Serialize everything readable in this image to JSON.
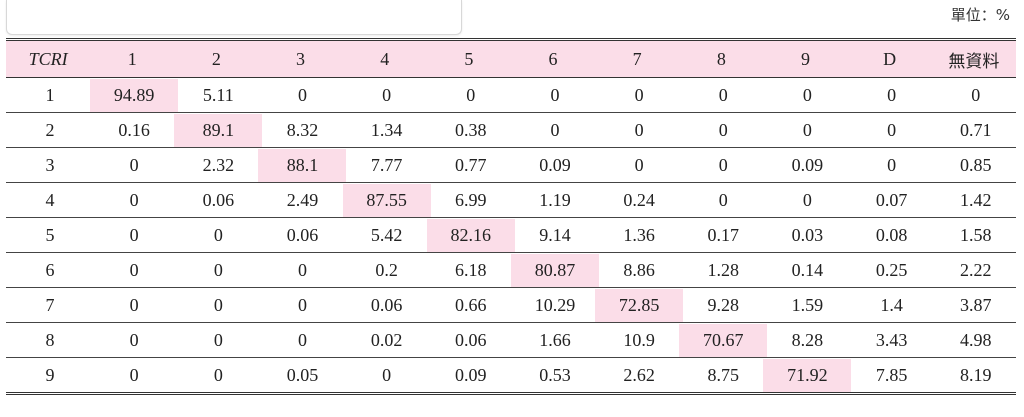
{
  "unit_label": "單位：%",
  "table": {
    "headers": [
      "TCRI",
      "1",
      "2",
      "3",
      "4",
      "5",
      "6",
      "7",
      "8",
      "9",
      "D",
      "無資料"
    ],
    "rows": [
      [
        "1",
        "94.89",
        "5.11",
        "0",
        "0",
        "0",
        "0",
        "0",
        "0",
        "0",
        "0",
        "0"
      ],
      [
        "2",
        "0.16",
        "89.1",
        "8.32",
        "1.34",
        "0.38",
        "0",
        "0",
        "0",
        "0",
        "0",
        "0.71"
      ],
      [
        "3",
        "0",
        "2.32",
        "88.1",
        "7.77",
        "0.77",
        "0.09",
        "0",
        "0",
        "0.09",
        "0",
        "0.85"
      ],
      [
        "4",
        "0",
        "0.06",
        "2.49",
        "87.55",
        "6.99",
        "1.19",
        "0.24",
        "0",
        "0",
        "0.07",
        "1.42"
      ],
      [
        "5",
        "0",
        "0",
        "0.06",
        "5.42",
        "82.16",
        "9.14",
        "1.36",
        "0.17",
        "0.03",
        "0.08",
        "1.58"
      ],
      [
        "6",
        "0",
        "0",
        "0",
        "0.2",
        "6.18",
        "80.87",
        "8.86",
        "1.28",
        "0.14",
        "0.25",
        "2.22"
      ],
      [
        "7",
        "0",
        "0",
        "0",
        "0.06",
        "0.66",
        "10.29",
        "72.85",
        "9.28",
        "1.59",
        "1.4",
        "3.87"
      ],
      [
        "8",
        "0",
        "0",
        "0",
        "0.02",
        "0.06",
        "1.66",
        "10.9",
        "70.67",
        "8.28",
        "3.43",
        "4.98"
      ],
      [
        "9",
        "0",
        "0",
        "0.05",
        "0",
        "0.09",
        "0.53",
        "2.62",
        "8.75",
        "71.92",
        "7.85",
        "8.19"
      ]
    ]
  },
  "colors": {
    "highlight": "#fbdde8"
  }
}
